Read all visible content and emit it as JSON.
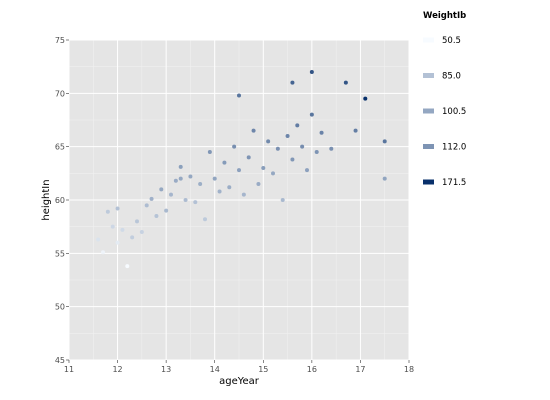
{
  "chart_data": {
    "type": "scatter",
    "xlabel": "ageYear",
    "ylabel": "heightIn",
    "xlim": [
      11,
      18
    ],
    "ylim": [
      45,
      75
    ],
    "x_ticks": [
      "11",
      "12",
      "13",
      "14",
      "15",
      "16",
      "17",
      "18"
    ],
    "y_ticks": [
      "45",
      "50",
      "55",
      "60",
      "65",
      "70",
      "75"
    ],
    "grid": true,
    "legend": {
      "title": "WeightIb",
      "placement": "right",
      "entries": [
        {
          "label": "50.5",
          "value": 50.5
        },
        {
          "label": "85.0",
          "value": 85.0
        },
        {
          "label": "100.5",
          "value": 100.5
        },
        {
          "label": "112.0",
          "value": 112.0
        },
        {
          "label": "171.5",
          "value": 171.5
        }
      ]
    },
    "color_scale": {
      "min": 50.5,
      "max": 171.5,
      "low": "#f7fbff",
      "high": "#08306b"
    },
    "points": [
      [
        11.6,
        56.3,
        65
      ],
      [
        11.7,
        55.1,
        55
      ],
      [
        11.8,
        58.9,
        80
      ],
      [
        11.9,
        57.5,
        72
      ],
      [
        12.0,
        56.0,
        60
      ],
      [
        12.0,
        59.2,
        85
      ],
      [
        12.1,
        57.2,
        70
      ],
      [
        12.2,
        53.8,
        50.5
      ],
      [
        12.3,
        56.5,
        78
      ],
      [
        12.4,
        58.0,
        82
      ],
      [
        12.5,
        57.0,
        75
      ],
      [
        12.6,
        59.5,
        88
      ],
      [
        12.7,
        60.1,
        95
      ],
      [
        12.8,
        58.5,
        84
      ],
      [
        12.9,
        61.0,
        100
      ],
      [
        13.0,
        59.0,
        90
      ],
      [
        13.1,
        60.5,
        92
      ],
      [
        13.2,
        61.8,
        98
      ],
      [
        13.3,
        63.1,
        105
      ],
      [
        13.4,
        60.0,
        88
      ],
      [
        13.5,
        62.2,
        100
      ],
      [
        13.6,
        59.8,
        85
      ],
      [
        13.7,
        61.5,
        96
      ],
      [
        13.8,
        58.2,
        80
      ],
      [
        13.9,
        64.5,
        110
      ],
      [
        14.0,
        62.0,
        102
      ],
      [
        14.1,
        60.8,
        94
      ],
      [
        14.2,
        63.5,
        108
      ],
      [
        14.3,
        61.2,
        97
      ],
      [
        14.4,
        65.0,
        115
      ],
      [
        14.5,
        62.8,
        104
      ],
      [
        14.6,
        60.5,
        92
      ],
      [
        14.7,
        64.0,
        112
      ],
      [
        14.8,
        66.5,
        120
      ],
      [
        14.9,
        61.5,
        98
      ],
      [
        15.0,
        63.0,
        106
      ],
      [
        15.1,
        65.5,
        118
      ],
      [
        15.2,
        62.5,
        100
      ],
      [
        15.3,
        64.8,
        114
      ],
      [
        15.4,
        60.0,
        90
      ],
      [
        15.5,
        66.0,
        121
      ],
      [
        15.6,
        63.8,
        110
      ],
      [
        15.7,
        67.0,
        126
      ],
      [
        15.8,
        65.0,
        116
      ],
      [
        15.9,
        62.8,
        104
      ],
      [
        16.0,
        68.0,
        130
      ],
      [
        16.1,
        64.5,
        112
      ],
      [
        16.2,
        66.3,
        122
      ],
      [
        16.4,
        64.8,
        114
      ],
      [
        16.7,
        71.0,
        150
      ],
      [
        16.9,
        66.5,
        125
      ],
      [
        17.1,
        69.5,
        171.5
      ],
      [
        17.5,
        65.5,
        130
      ],
      [
        17.5,
        62.0,
        102
      ],
      [
        13.3,
        62.0,
        100
      ],
      [
        15.6,
        71.0,
        140
      ],
      [
        16.0,
        72.0,
        150
      ],
      [
        14.5,
        69.8,
        130
      ]
    ]
  }
}
